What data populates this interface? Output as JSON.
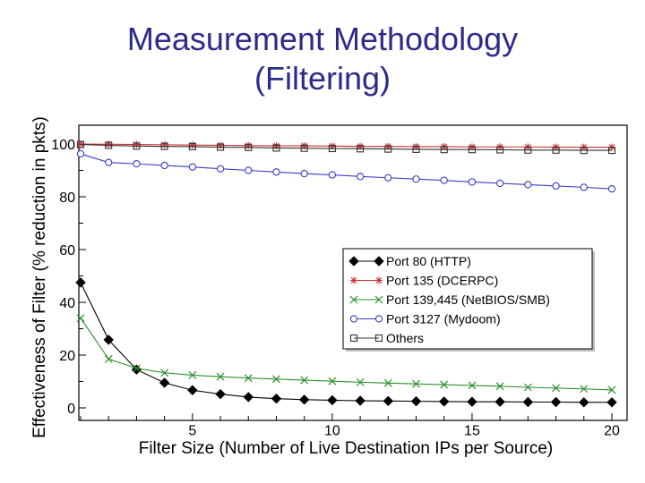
{
  "slide": {
    "title_line1": "Measurement Methodology",
    "title_line2": "(Filtering)"
  },
  "chart_data": {
    "type": "line",
    "xlabel": "Filter Size (Number of Live Destination IPs per Source)",
    "ylabel": "Effectiveness of Filter (% reduction in pkts)",
    "xlim": [
      1,
      20
    ],
    "ylim": [
      0,
      100
    ],
    "x_ticks": [
      5,
      10,
      15,
      20
    ],
    "y_ticks": [
      0,
      20,
      40,
      60,
      80,
      100
    ],
    "grid": false,
    "legend_position": "center-right",
    "x": [
      1,
      2,
      3,
      4,
      5,
      6,
      7,
      8,
      9,
      10,
      11,
      12,
      13,
      14,
      15,
      16,
      17,
      18,
      19,
      20
    ],
    "series": [
      {
        "name": "Port 80 (HTTP)",
        "color": "#000000",
        "marker": "diamond",
        "values": [
          47.5,
          25.8,
          14.5,
          9.5,
          6.7,
          5.2,
          4.1,
          3.5,
          3.1,
          2.9,
          2.7,
          2.6,
          2.5,
          2.4,
          2.3,
          2.3,
          2.2,
          2.2,
          2.1,
          2.1
        ]
      },
      {
        "name": "Port 135 (DCERPC)",
        "color": "#d23030",
        "marker": "star",
        "values": [
          100,
          99.9,
          99.8,
          99.7,
          99.6,
          99.5,
          99.4,
          99.3,
          99.3,
          99.2,
          99.1,
          99.1,
          99,
          99,
          98.9,
          98.9,
          98.9,
          98.8,
          98.8,
          98.8
        ]
      },
      {
        "name": "Port 139,445 (NetBIOS/SMB)",
        "color": "#2a8f2a",
        "marker": "x",
        "values": [
          34,
          18.5,
          15,
          13.3,
          12.4,
          11.8,
          11.3,
          10.9,
          10.5,
          10.1,
          9.7,
          9.4,
          9.1,
          8.8,
          8.5,
          8.2,
          7.8,
          7.5,
          7.2,
          6.8
        ]
      },
      {
        "name": "Port 3127 (Mydoom)",
        "color": "#3b3bc9",
        "marker": "circle",
        "values": [
          96.3,
          93,
          92.5,
          91.9,
          91.3,
          90.6,
          90,
          89.4,
          88.8,
          88.3,
          87.7,
          87.2,
          86.7,
          86.2,
          85.6,
          85.1,
          84.6,
          84.1,
          83.6,
          83
        ]
      },
      {
        "name": "Others",
        "color": "#333333",
        "marker": "square",
        "values": [
          99.8,
          99.5,
          99.2,
          99.1,
          99,
          98.8,
          98.7,
          98.5,
          98.4,
          98.3,
          98.2,
          98.1,
          98,
          97.9,
          97.9,
          97.8,
          97.7,
          97.7,
          97.6,
          97.6
        ]
      }
    ]
  }
}
